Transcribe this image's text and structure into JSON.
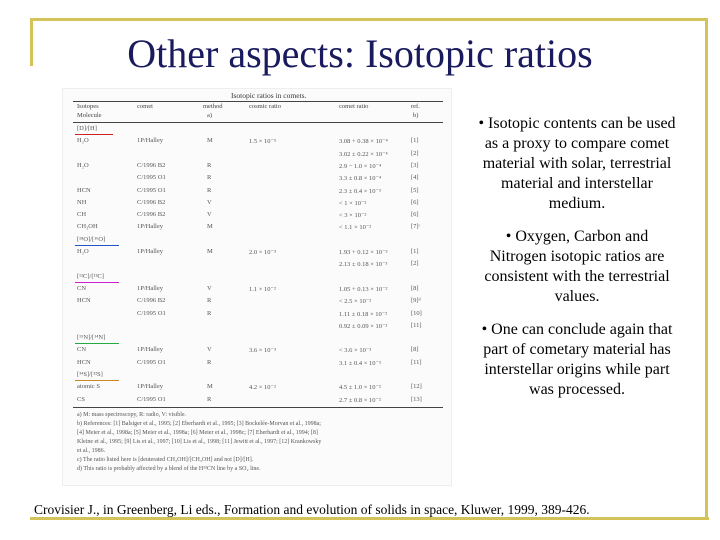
{
  "title": "Other aspects: Isotopic ratios",
  "table": {
    "caption": "Isotopic ratios in comets.",
    "headers": [
      "Isotopes",
      "comet",
      "method",
      "cosmic ratio",
      "comet ratio",
      "ref."
    ],
    "subheader": [
      "Molecule",
      "",
      "a)",
      "",
      "",
      "b)"
    ],
    "rows": [
      [
        "[D]/[H]",
        "",
        "",
        "",
        "",
        ""
      ],
      [
        "H₂O",
        "1P/Halley",
        "M",
        "1.5 × 10⁻⁵",
        "3.08 + 0.38 × 10⁻⁴",
        "[1]"
      ],
      [
        "",
        "",
        "",
        "",
        "3.02 ± 0.22 × 10⁻⁴",
        "[2]"
      ],
      [
        "H₂O",
        "C/1996 B2",
        "R",
        "",
        "2.9 − 1.0 × 10⁻⁴",
        "[3]"
      ],
      [
        "",
        "C/1995 O1",
        "R",
        "",
        "3.3 ± 0.8 × 10⁻⁴",
        "[4]"
      ],
      [
        "HCN",
        "C/1995 O1",
        "R",
        "",
        "2.3 ± 0.4 × 10⁻³",
        "[5]"
      ],
      [
        "NH",
        "C/1996 B2",
        "V",
        "",
        "< 1 × 10⁻²",
        "[6]"
      ],
      [
        "CH",
        "C/1996 B2",
        "V",
        "",
        "< 3 × 10⁻²",
        "[6]"
      ],
      [
        "CH₃OH",
        "1P/Halley",
        "M",
        "",
        "< 1.1 × 10⁻²",
        "[7]ᶜ"
      ],
      [
        "[¹⁸O]/[¹⁶O]",
        "",
        "",
        "",
        "",
        ""
      ],
      [
        "H₂O",
        "1P/Halley",
        "M",
        "2.0 × 10⁻³",
        "1.93 + 0.12 × 10⁻³",
        "[1]"
      ],
      [
        "",
        "",
        "",
        "",
        "2.13 ± 0.18 × 10⁻³",
        "[2]"
      ],
      [
        "[¹²C]/[¹³C]",
        "",
        "",
        "",
        "",
        ""
      ],
      [
        "CN",
        "1P/Halley",
        "V",
        "1.1 × 10⁻²",
        "1.05 + 0.13 × 10⁻²",
        "[8]"
      ],
      [
        "HCN",
        "C/1996 B2",
        "R",
        "",
        "< 2.5 × 10⁻²",
        "[9]ᵈ"
      ],
      [
        "",
        "C/1995 O1",
        "R",
        "",
        "1.11 ± 0.18 × 10⁻²",
        "[10]"
      ],
      [
        "",
        "",
        "",
        "",
        "0.92 ± 0.09 × 10⁻²",
        "[11]"
      ],
      [
        "[¹⁵N]/[¹⁴N]",
        "",
        "",
        "",
        "",
        ""
      ],
      [
        "CN",
        "1P/Halley",
        "V",
        "3.6 × 10⁻³",
        "< 3.6 × 10⁻³",
        "[8]"
      ],
      [
        "HCN",
        "C/1995 O1",
        "R",
        "",
        "3.1 ± 0.4 × 10⁻³",
        "[11]"
      ],
      [
        "[³⁴S]/[³²S]",
        "",
        "",
        "",
        "",
        ""
      ],
      [
        "atomic S",
        "1P/Halley",
        "M",
        "4.2 × 10⁻²",
        "4.5 ± 1.0 × 10⁻²",
        "[12]"
      ],
      [
        "CS",
        "C/1995 O1",
        "R",
        "",
        "2.7 ± 0.8 × 10⁻²",
        "[13]"
      ]
    ],
    "footnotes": [
      "a) M: mass spectroscopy, R: radio, V: visible.",
      "b) References: [1] Balsiger et al., 1995; [2] Eberhardt et al., 1995; [3] Bockelée-Morvan et al., 1998a;",
      "[4] Meier et al., 1998a; [5] Meier et al., 1998a; [6] Meier et al., 1998c; [7] Eberhardt et al., 1994; [8]",
      "Kleine et al., 1995; [9] Lis et al., 1997; [10] Lis et al., 1998; [11] Jewitt et al., 1997; [12] Krankowsky",
      "et al., 1986.",
      "c) The ratio listed here is [deuterated CH₃OH]/[CH₃OH] and not [D]/[H].",
      "d) This ratio is probably affected by a blend of the H¹³CN line by a SO₂ line."
    ]
  },
  "bullets": [
    "• Isotopic contents can be used as a proxy to compare comet material with solar, terrestrial material and interstellar medium.",
    "• Oxygen, Carbon and Nitrogen isotopic ratios are consistent with the terrestrial values.",
    "• One can conclude again that part of cometary material has interstellar origins while part was processed."
  ],
  "citation": "Crovisier J., in Greenberg, Li eds., Formation and evolution of solids in space, Kluwer, 1999, 389-426.",
  "colors": {
    "frame": "#d4c25a",
    "title": "#1a1a5e",
    "underline_dh": "#cc2222",
    "underline_o": "#2255cc",
    "underline_c": "#cc22cc",
    "underline_n": "#22aa44",
    "underline_s": "#cc8822"
  }
}
